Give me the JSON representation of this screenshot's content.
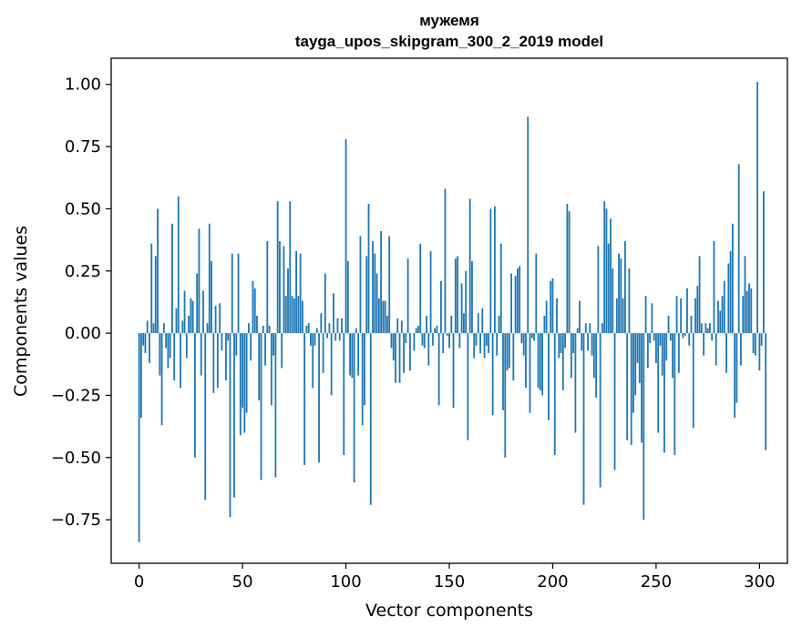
{
  "chart_data": {
    "type": "bar",
    "title": "мужемя",
    "subtitle": "tayga_upos_skipgram_300_2_2019 model",
    "xlabel": "Vector components",
    "ylabel": "Components values",
    "xlim": [
      -13.5,
      313.5
    ],
    "ylim": [
      -0.925,
      1.105
    ],
    "xticks": [
      0,
      50,
      100,
      150,
      200,
      250,
      300
    ],
    "xtick_labels": [
      "0",
      "50",
      "100",
      "150",
      "200",
      "250",
      "300"
    ],
    "yticks": [
      -0.75,
      -0.5,
      -0.25,
      0.0,
      0.25,
      0.5,
      0.75,
      1.0
    ],
    "ytick_labels": [
      "−0.75",
      "−0.50",
      "−0.25",
      "0.00",
      "0.25",
      "0.50",
      "0.75",
      "1.00"
    ],
    "grid": false,
    "bar_color": "#1f77b4",
    "values": [
      -0.84,
      -0.34,
      -0.05,
      -0.08,
      0.05,
      -0.12,
      0.36,
      0.04,
      0.31,
      0.5,
      -0.17,
      -0.37,
      0.04,
      -0.06,
      -0.14,
      -0.1,
      0.44,
      -0.19,
      0.1,
      0.55,
      -0.22,
      0.05,
      0.17,
      -0.1,
      0.07,
      0.14,
      0.13,
      -0.5,
      0.24,
      0.42,
      -0.17,
      0.17,
      -0.67,
      0.04,
      0.44,
      0.29,
      -0.24,
      0.11,
      -0.22,
      0.12,
      -0.07,
      0.0,
      -0.19,
      -0.03,
      -0.74,
      0.32,
      -0.66,
      -0.09,
      0.32,
      -0.41,
      -0.3,
      -0.4,
      -0.32,
      0.04,
      -0.11,
      0.21,
      0.18,
      0.07,
      -0.27,
      -0.59,
      0.03,
      -0.13,
      0.37,
      0.03,
      -0.29,
      -0.09,
      -0.58,
      0.53,
      0.37,
      -0.14,
      0.35,
      0.15,
      0.26,
      0.53,
      0.15,
      0.14,
      0.33,
      0.15,
      0.32,
      0.13,
      -0.53,
      0.03,
      0.04,
      -0.05,
      -0.22,
      -0.05,
      0.02,
      -0.52,
      0.08,
      -0.16,
      0.24,
      -0.02,
      0.04,
      -0.25,
      0.16,
      -0.03,
      0.06,
      -0.03,
      0.06,
      -0.49,
      0.78,
      0.29,
      -0.17,
      -0.18,
      -0.6,
      0.02,
      -0.17,
      0.39,
      -0.37,
      -0.29,
      0.31,
      0.52,
      -0.69,
      0.37,
      0.32,
      0.24,
      0.14,
      0.41,
      0.13,
      0.13,
      0.07,
      0.39,
      -0.06,
      -0.11,
      -0.2,
      0.06,
      -0.2,
      0.05,
      -0.16,
      -0.04,
      0.3,
      -0.15,
      0.0,
      -0.07,
      0.02,
      0.03,
      0.36,
      -0.05,
      -0.06,
      0.07,
      -0.13,
      0.33,
      -0.05,
      0.02,
      0.03,
      -0.29,
      0.21,
      -0.08,
      0.58,
      -0.01,
      -0.06,
      0.07,
      -0.3,
      0.3,
      0.31,
      -0.06,
      0.2,
      0.08,
      0.25,
      -0.43,
      0.54,
      0.29,
      -0.1,
      -0.05,
      0.08,
      -0.08,
      0.1,
      -0.1,
      -0.05,
      -0.08,
      0.5,
      -0.33,
      0.51,
      -0.09,
      0.07,
      0.36,
      -0.31,
      -0.5,
      -0.15,
      -0.14,
      0.24,
      -0.19,
      0.23,
      0.26,
      0.27,
      -0.04,
      -0.09,
      -0.22,
      0.87,
      -0.32,
      -0.02,
      -0.03,
      0.32,
      -0.22,
      -0.23,
      -0.25,
      0.07,
      0.13,
      -0.35,
      0.21,
      0.22,
      -0.49,
      0.14,
      -0.1,
      -0.08,
      -0.23,
      -0.06,
      0.52,
      0.49,
      -0.18,
      -0.08,
      -0.4,
      0.02,
      0.13,
      -0.07,
      -0.69,
      0.04,
      -0.07,
      0.04,
      -0.09,
      -0.18,
      -0.26,
      0.35,
      -0.62,
      0.04,
      0.53,
      0.5,
      0.36,
      0.46,
      0.26,
      -0.55,
      0.14,
      0.32,
      0.3,
      0.14,
      0.37,
      -0.43,
      0.26,
      -0.45,
      -0.32,
      -0.25,
      -0.12,
      -0.2,
      -0.44,
      -0.75,
      0.15,
      -0.14,
      -0.04,
      0.12,
      -0.03,
      -0.12,
      -0.4,
      -0.05,
      -0.17,
      -0.48,
      -0.11,
      0.07,
      -0.03,
      -0.18,
      -0.49,
      0.15,
      -0.16,
      0.14,
      -0.02,
      -0.01,
      0.18,
      -0.05,
      0.07,
      -0.38,
      0.14,
      0.19,
      0.31,
      0.04,
      -0.09,
      0.04,
      0.02,
      0.04,
      -0.03,
      0.37,
      -0.13,
      0.13,
      0.09,
      0.15,
      0.21,
      -0.16,
      0.28,
      0.33,
      0.44,
      -0.34,
      -0.28,
      0.68,
      -0.13,
      0.15,
      0.31,
      0.17,
      0.2,
      0.18,
      -0.08,
      -0.09,
      1.01,
      -0.15,
      -0.05,
      0.57,
      -0.47
    ]
  }
}
